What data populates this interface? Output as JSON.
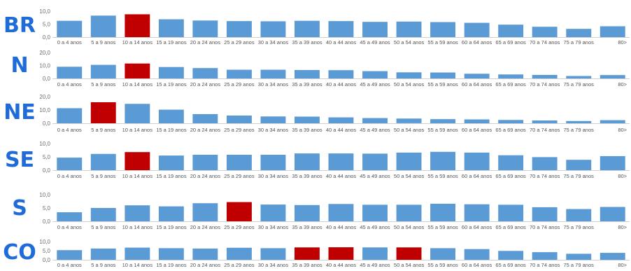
{
  "chart_data": [
    {
      "type": "bar",
      "region": "BR",
      "ylim": [
        0,
        10
      ],
      "yticks": [
        "10,0",
        "5,0",
        "0,0"
      ],
      "categories": [
        "0 a 4 anos",
        "5 a 9 anos",
        "10 a 14 anos",
        "15 a 19 anos",
        "20 a 24 anos",
        "25 a 29 anos",
        "30 a 34 anos",
        "35 a 39 anos",
        "40 a 44 anos",
        "45 a 49 anos",
        "50 a 54 anos",
        "55 a 59 anos",
        "60 a 64 anos",
        "65 a 69 anos",
        "70 a 74 anos",
        "75 a 79 anos",
        "80>"
      ],
      "values": [
        6.3,
        8.3,
        8.8,
        6.9,
        6.4,
        6.2,
        6.1,
        6.3,
        6.2,
        5.9,
        6.0,
        5.8,
        5.5,
        4.8,
        4.0,
        3.2,
        4.2
      ],
      "highlight": [
        2
      ]
    },
    {
      "type": "bar",
      "region": "N",
      "ylim": [
        0,
        20
      ],
      "yticks": [
        "20,0",
        "10,0",
        "0,0"
      ],
      "categories": [
        "0 a 4 anos",
        "5 a 9 anos",
        "10 a 14 anos",
        "15 a 19 anos",
        "20 a 24 anos",
        "25 a 29 anos",
        "30 a 34 anos",
        "35 a 39 anos",
        "40 a 44 anos",
        "45 a 49 anos",
        "50 a 54 anos",
        "55 a 59 anos",
        "60 a 64 anos",
        "65 a 69 anos",
        "70 a 74 anos",
        "75 a 79 anos",
        "80>"
      ],
      "values": [
        9.0,
        10.5,
        11.5,
        8.8,
        8.0,
        6.7,
        6.7,
        6.5,
        6.4,
        5.6,
        4.7,
        4.6,
        3.6,
        3.1,
        2.7,
        1.9,
        2.6
      ],
      "highlight": [
        2
      ]
    },
    {
      "type": "bar",
      "region": "NE",
      "ylim": [
        0,
        20
      ],
      "yticks": [
        "20,0",
        "10,0",
        "0,0"
      ],
      "categories": [
        "0 a 4 anos",
        "5 a 9 anos",
        "10 a 14 anos",
        "15 a 19 anos",
        "20 a 24 anos",
        "25 a 29 anos",
        "30 a 34 anos",
        "35 a 39 anos",
        "40 a 44 anos",
        "45 a 49 anos",
        "50 a 54 anos",
        "55 a 59 anos",
        "60 a 64 anos",
        "65 a 69 anos",
        "70 a 74 anos",
        "75 a 79 anos",
        "80>"
      ],
      "values": [
        11.3,
        15.8,
        14.6,
        10.2,
        6.9,
        5.8,
        5.1,
        5.0,
        4.4,
        3.9,
        3.5,
        3.1,
        2.9,
        2.5,
        2.1,
        1.7,
        2.3
      ],
      "highlight": [
        1
      ]
    },
    {
      "type": "bar",
      "region": "SE",
      "ylim": [
        0,
        10
      ],
      "yticks": [
        "10,0",
        "5,0",
        "0,0"
      ],
      "categories": [
        "0 a 4 anos",
        "5 a 9 anos",
        "10 a 14 anos",
        "15 a 19 anos",
        "20 a 24 anos",
        "25 a 29 anos",
        "30 a 34 anos",
        "35 a 39 anos",
        "40 a 44 anos",
        "45 a 49 anos",
        "50 a 54 anos",
        "55 a 59 anos",
        "60 a 64 anos",
        "65 a 69 anos",
        "70 a 74 anos",
        "75 a 79 anos",
        "80>"
      ],
      "values": [
        4.7,
        6.1,
        6.8,
        5.5,
        5.8,
        5.8,
        5.8,
        6.3,
        6.3,
        6.2,
        6.6,
        6.9,
        6.6,
        5.6,
        4.9,
        3.9,
        5.3
      ],
      "highlight": [
        2
      ]
    },
    {
      "type": "bar",
      "region": "S",
      "ylim": [
        0,
        10
      ],
      "yticks": [
        "10,0",
        "5,0",
        "0,0"
      ],
      "categories": [
        "0 a 4 anos",
        "5 a 9 anos",
        "10 a 14 anos",
        "15 a 19 anos",
        "20 a 24 anos",
        "25 a 29 anos",
        "30 a 34 anos",
        "35 a 39 anos",
        "40 a 44 anos",
        "45 a 49 anos",
        "50 a 54 anos",
        "55 a 59 anos",
        "60 a 64 anos",
        "65 a 69 anos",
        "70 a 74 anos",
        "75 a 79 anos",
        "80>"
      ],
      "values": [
        3.4,
        5.0,
        6.0,
        5.6,
        6.8,
        7.2,
        6.3,
        6.1,
        6.5,
        6.2,
        6.2,
        6.6,
        6.4,
        6.2,
        5.3,
        4.6,
        5.4
      ],
      "highlight": [
        5
      ]
    },
    {
      "type": "bar",
      "region": "CO",
      "ylim": [
        0,
        10
      ],
      "yticks": [
        "10,0",
        "5,0",
        "0,0"
      ],
      "categories": [
        "0 a 4 anos",
        "5 a 9 anos",
        "10 a 14 anos",
        "15 a 19 anos",
        "20 a 24 anos",
        "25 a 29 anos",
        "30 a 34 anos",
        "35 a 39 anos",
        "40 a 44 anos",
        "45 a 49 anos",
        "50 a 54 anos",
        "55 a 59 anos",
        "60 a 64 anos",
        "65 a 69 anos",
        "70 a 74 anos",
        "75 a 79 anos",
        "80>"
      ],
      "values": [
        5.3,
        6.2,
        6.7,
        6.4,
        6.2,
        6.6,
        6.4,
        6.8,
        6.9,
        6.8,
        6.8,
        6.4,
        5.9,
        4.9,
        4.2,
        3.3,
        3.8
      ],
      "highlight": [
        7,
        8,
        10
      ]
    }
  ],
  "colors": {
    "bar": "#5b9bd5",
    "highlight": "#c00000",
    "region_label": "#1f6cd9",
    "axis": "#d0d0d0"
  }
}
